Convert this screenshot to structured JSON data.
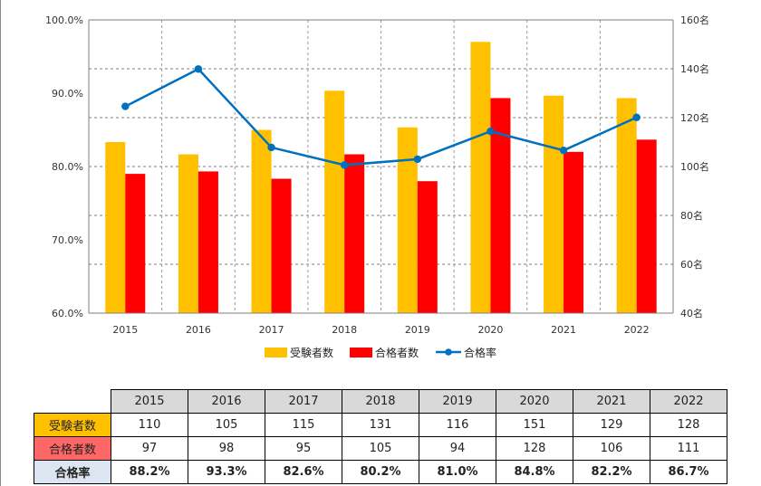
{
  "chart_data": {
    "type": "bar",
    "categories": [
      "2015",
      "2016",
      "2017",
      "2018",
      "2019",
      "2020",
      "2021",
      "2022"
    ],
    "series": [
      {
        "name": "受験者数",
        "kind": "bar",
        "axis": "right",
        "color": "#ffc000",
        "values": [
          110,
          105,
          115,
          131,
          116,
          151,
          129,
          128
        ]
      },
      {
        "name": "合格者数",
        "kind": "bar",
        "axis": "right",
        "color": "#ff0000",
        "values": [
          97,
          98,
          95,
          105,
          94,
          128,
          106,
          111
        ]
      },
      {
        "name": "合格率",
        "kind": "line",
        "axis": "left",
        "color": "#0070c0",
        "values": [
          88.2,
          93.3,
          82.6,
          80.2,
          81.0,
          84.8,
          82.2,
          86.7
        ]
      }
    ],
    "left_axis": {
      "min": 60,
      "max": 100,
      "step": 10,
      "ticks": [
        "60.0%",
        "70.0%",
        "80.0%",
        "90.0%",
        "100.0%"
      ]
    },
    "right_axis": {
      "min": 40,
      "max": 160,
      "step": 20,
      "ticks": [
        "40名",
        "60名",
        "80名",
        "100名",
        "120名",
        "140名",
        "160名"
      ]
    },
    "legend": [
      "受験者数",
      "合格者数",
      "合格率"
    ],
    "legend_position": "bottom",
    "grid": true
  },
  "table": {
    "years": [
      "2015",
      "2016",
      "2017",
      "2018",
      "2019",
      "2020",
      "2021",
      "2022"
    ],
    "rows": [
      {
        "label": "受験者数",
        "values": [
          "110",
          "105",
          "115",
          "131",
          "116",
          "151",
          "129",
          "128"
        ]
      },
      {
        "label": "合格者数",
        "values": [
          "97",
          "98",
          "95",
          "105",
          "94",
          "128",
          "106",
          "111"
        ]
      },
      {
        "label": "合格率",
        "values": [
          "88.2%",
          "93.3%",
          "82.6%",
          "80.2%",
          "81.0%",
          "84.8%",
          "82.2%",
          "86.7%"
        ]
      }
    ]
  }
}
